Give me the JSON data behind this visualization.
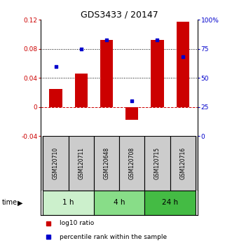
{
  "title": "GDS3433 / 20147",
  "samples": [
    "GSM120710",
    "GSM120711",
    "GSM120648",
    "GSM120708",
    "GSM120715",
    "GSM120716"
  ],
  "log10_ratio": [
    0.025,
    0.046,
    0.092,
    -0.018,
    0.092,
    0.117
  ],
  "percentile_rank": [
    60,
    75,
    83,
    30,
    83,
    68
  ],
  "time_groups": [
    {
      "label": "1 h",
      "start": 0,
      "end": 2,
      "color": "#ccf0cc"
    },
    {
      "label": "4 h",
      "start": 2,
      "end": 4,
      "color": "#88dd88"
    },
    {
      "label": "24 h",
      "start": 4,
      "end": 6,
      "color": "#44bb44"
    }
  ],
  "bar_color": "#cc0000",
  "point_color": "#0000cc",
  "ylim_left": [
    -0.04,
    0.12
  ],
  "ylim_right": [
    0,
    100
  ],
  "yticks_left": [
    -0.04,
    0,
    0.04,
    0.08,
    0.12
  ],
  "yticks_right": [
    0,
    25,
    50,
    75,
    100
  ],
  "ytick_labels_left": [
    "-0.04",
    "0",
    "0.04",
    "0.08",
    "0.12"
  ],
  "ytick_labels_right": [
    "0",
    "25",
    "50",
    "75",
    "100%"
  ],
  "hlines_dotted": [
    0.04,
    0.08
  ],
  "hline_zero_color": "#cc0000",
  "sample_box_color": "#cccccc",
  "legend_items": [
    "log10 ratio",
    "percentile rank within the sample"
  ],
  "time_label": "time"
}
